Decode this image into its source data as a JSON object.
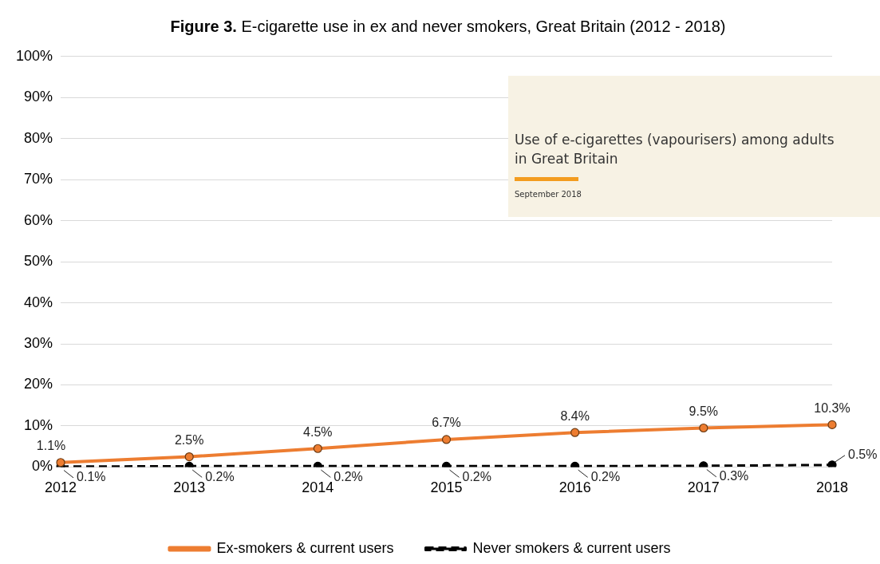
{
  "chart_data": {
    "type": "line",
    "title": "Figure 3. E-cigarette use in ex and never smokers, Great Britain (2012 - 2018)",
    "categories": [
      "2012",
      "2013",
      "2014",
      "2015",
      "2016",
      "2017",
      "2018"
    ],
    "series": [
      {
        "name": "Ex-smokers & current users",
        "color": "#ed7d31",
        "values": [
          1.1,
          2.5,
          4.5,
          6.7,
          8.4,
          9.5,
          10.3
        ],
        "value_labels": [
          "1.1%",
          "2.5%",
          "4.5%",
          "6.7%",
          "8.4%",
          "9.5%",
          "10.3%"
        ],
        "line_style": "solid"
      },
      {
        "name": "Never smokers & current users",
        "color": "#000000",
        "values": [
          0.1,
          0.2,
          0.2,
          0.2,
          0.2,
          0.3,
          0.5
        ],
        "value_labels": [
          "0.1%",
          "0.2%",
          "0.2%",
          "0.2%",
          "0.2%",
          "0.3%",
          "0.5%"
        ],
        "line_style": "dashed"
      }
    ],
    "ylim": [
      0,
      100
    ],
    "yticks": [
      {
        "value": 0,
        "label": "0%"
      },
      {
        "value": 10,
        "label": "10%"
      },
      {
        "value": 20,
        "label": "20%"
      },
      {
        "value": 30,
        "label": "30%"
      },
      {
        "value": 40,
        "label": "40%"
      },
      {
        "value": 50,
        "label": "50%"
      },
      {
        "value": 60,
        "label": "60%"
      },
      {
        "value": 70,
        "label": "70%"
      },
      {
        "value": 80,
        "label": "80%"
      },
      {
        "value": 90,
        "label": "90%"
      },
      {
        "value": 100,
        "label": "100%"
      }
    ],
    "grid": "y",
    "legend": "bottom",
    "marker": "circle",
    "annotations": [
      "Use of e-cigarettes (vapourisers) among adults in Great Britain",
      "September 2018"
    ]
  }
}
